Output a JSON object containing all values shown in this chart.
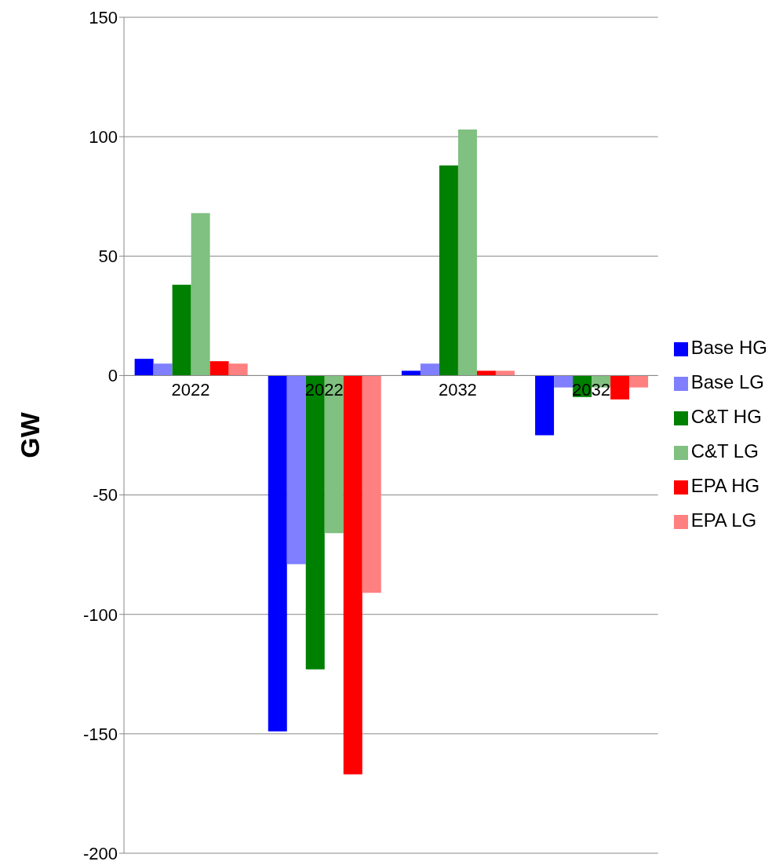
{
  "chart_data": {
    "type": "bar",
    "ylabel": "GW",
    "categories": [
      "2022",
      "2022",
      "2032",
      "2032"
    ],
    "series": [
      {
        "name": "Base HG",
        "color": "#0000ff",
        "values": [
          7,
          -149,
          2,
          -25
        ]
      },
      {
        "name": "Base LG",
        "color": "#7f7fff",
        "values": [
          5,
          -79,
          5,
          -5
        ]
      },
      {
        "name": "C&T HG",
        "color": "#008000",
        "values": [
          38,
          -123,
          88,
          -9
        ]
      },
      {
        "name": "C&T LG",
        "color": "#80c080",
        "values": [
          68,
          -66,
          103,
          -5
        ]
      },
      {
        "name": "EPA HG",
        "color": "#ff0000",
        "values": [
          6,
          -167,
          2,
          -10
        ]
      },
      {
        "name": "EPA LG",
        "color": "#ff8080",
        "values": [
          5,
          -91,
          2,
          -5
        ]
      }
    ],
    "ylim": [
      -200,
      150
    ],
    "yticks": [
      -200,
      -150,
      -100,
      -50,
      0,
      50,
      100,
      150
    ],
    "grid": "y",
    "legend": "right"
  }
}
